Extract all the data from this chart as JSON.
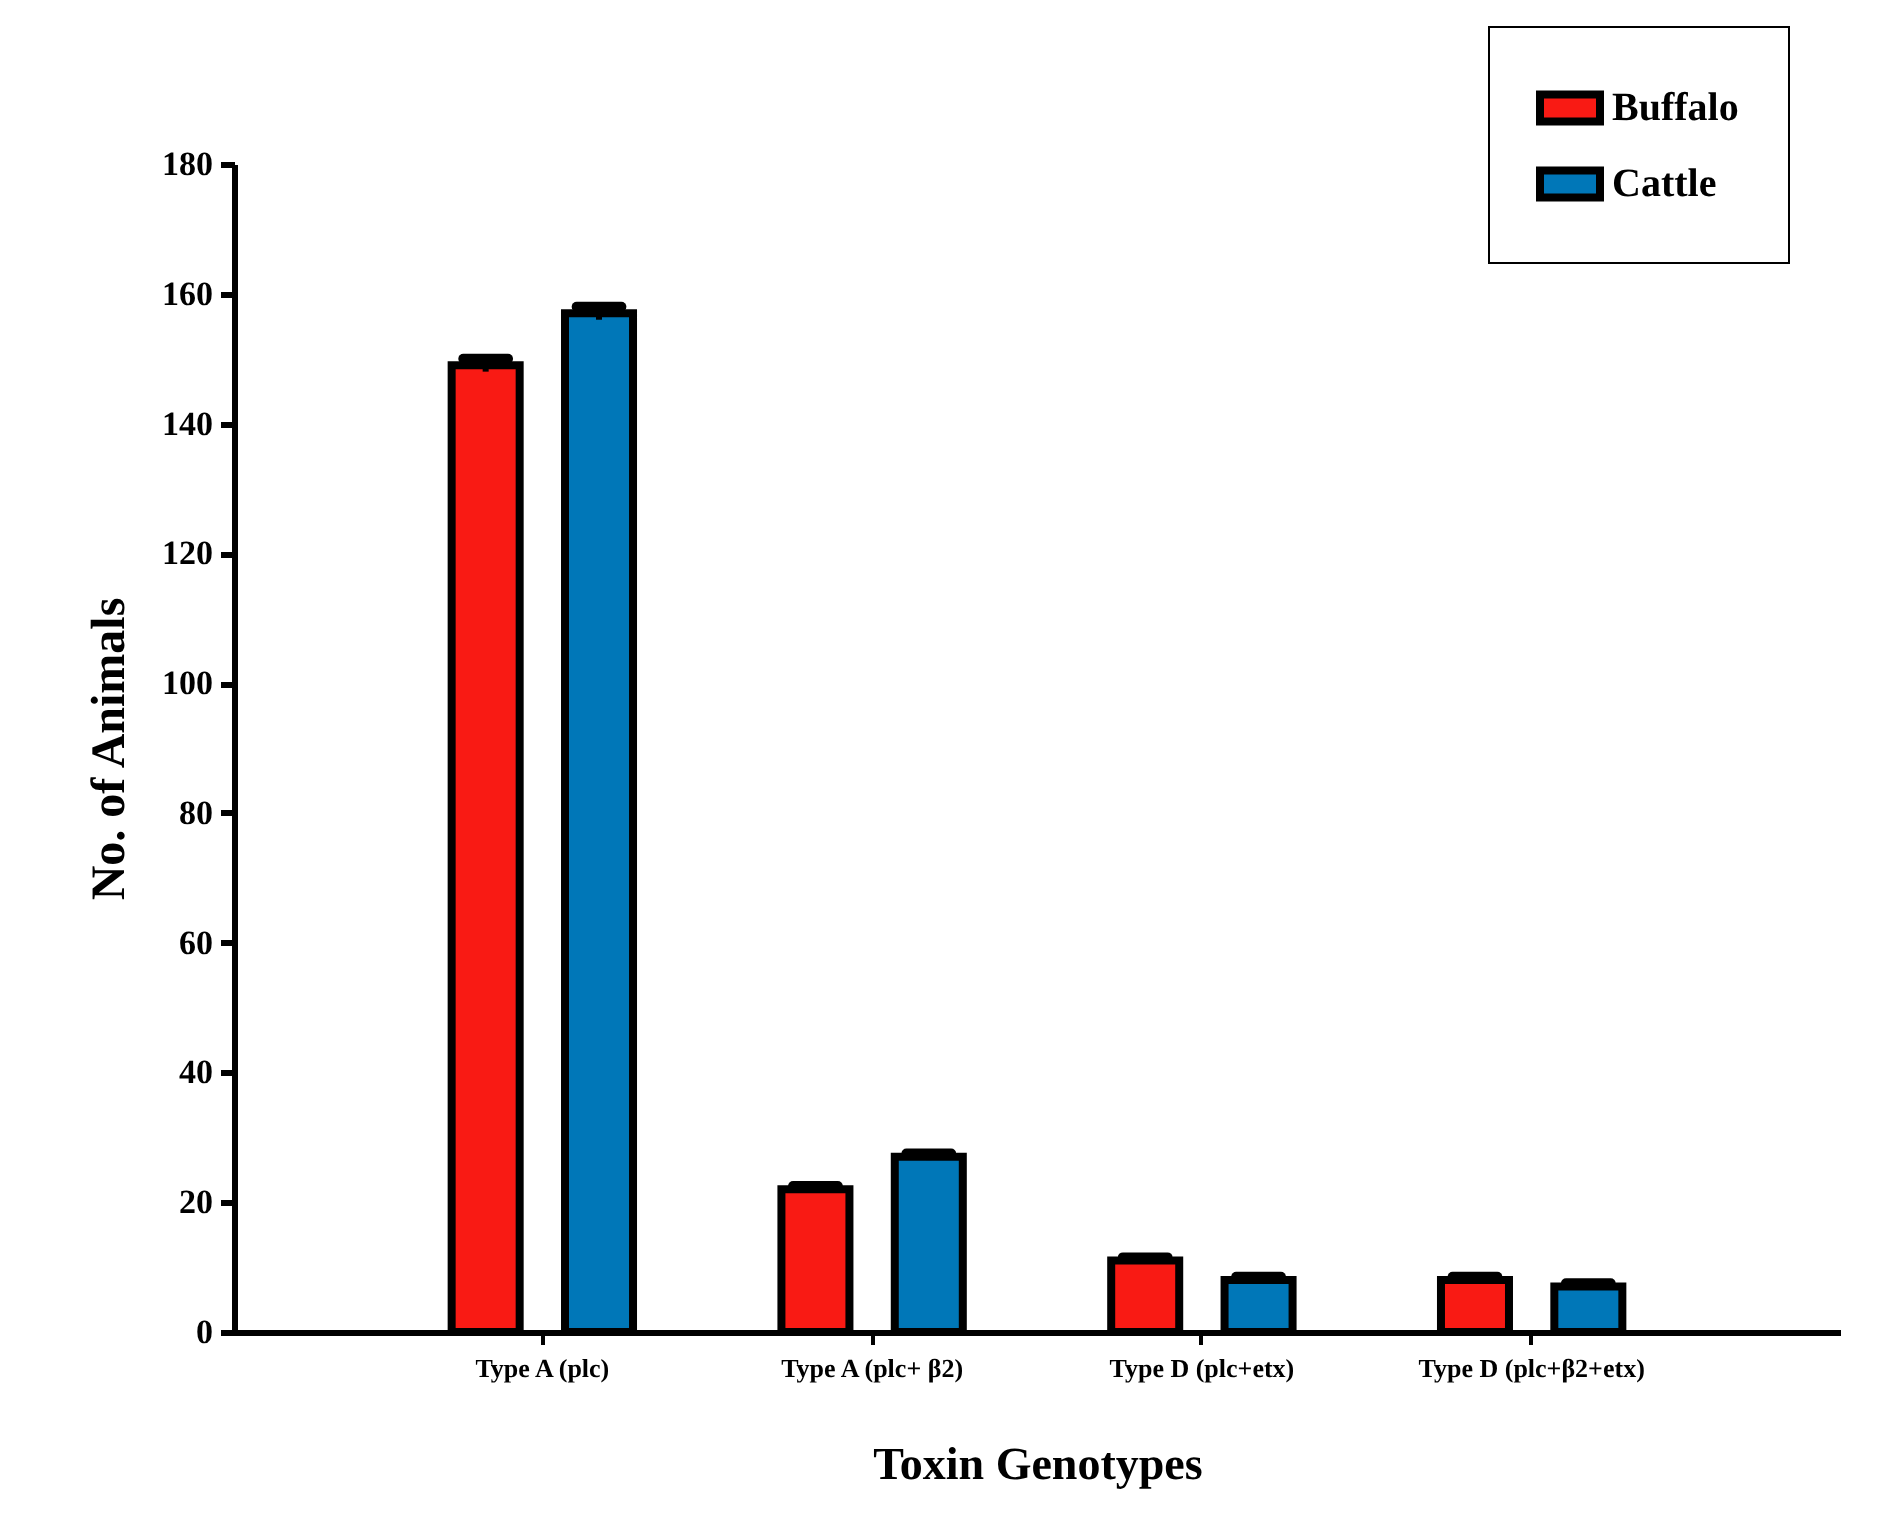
{
  "chart_data": {
    "type": "bar",
    "xlabel": "Toxin Genotypes",
    "ylabel": "No. of Animals",
    "categories": [
      "Type A (plc)",
      "Type A (plc+ β2)",
      "Type D (plc+etx)",
      "Type D (plc+β2+etx)"
    ],
    "series": [
      {
        "name": "Buffalo",
        "color": "#f91a14",
        "values": [
          149,
          22,
          11,
          8
        ],
        "errors": [
          1,
          0.5,
          0.5,
          0.5
        ]
      },
      {
        "name": "Cattle",
        "color": "#0077b8",
        "values": [
          157,
          27,
          8,
          7
        ],
        "errors": [
          1,
          0.5,
          0.5,
          0.5
        ]
      }
    ],
    "ylim": [
      0,
      180
    ],
    "yticks": [
      0,
      20,
      40,
      60,
      80,
      100,
      120,
      140,
      160,
      180
    ],
    "legend": "top right"
  }
}
